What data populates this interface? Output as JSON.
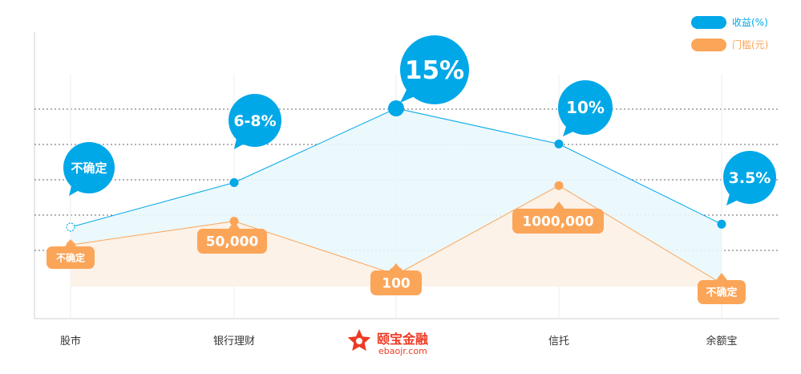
{
  "chart_data": {
    "type": "line",
    "categories": [
      "股市",
      "银行理财",
      "",
      "信托",
      "余额宝"
    ],
    "series": [
      {
        "name": "收益(%)",
        "color": "#00a8e8",
        "levels": [
          2.0,
          3.5,
          6.0,
          4.8,
          2.1
        ],
        "labels": [
          "不确定",
          "6-8%",
          "15%",
          "10%",
          "3.5%"
        ]
      },
      {
        "name": "门槛(元)",
        "color": "#fba559",
        "levels": [
          1.4,
          2.2,
          0.4,
          3.4,
          0.1
        ],
        "labels": [
          "不确定",
          "50,000",
          "100",
          "1000,000",
          "不确定"
        ]
      }
    ],
    "grid": true,
    "legend": "top-right"
  },
  "logo": {
    "name": "颐宝金融",
    "url": "ebaojr.com",
    "icon": "star-logo-icon",
    "color": "#ee3a24"
  }
}
